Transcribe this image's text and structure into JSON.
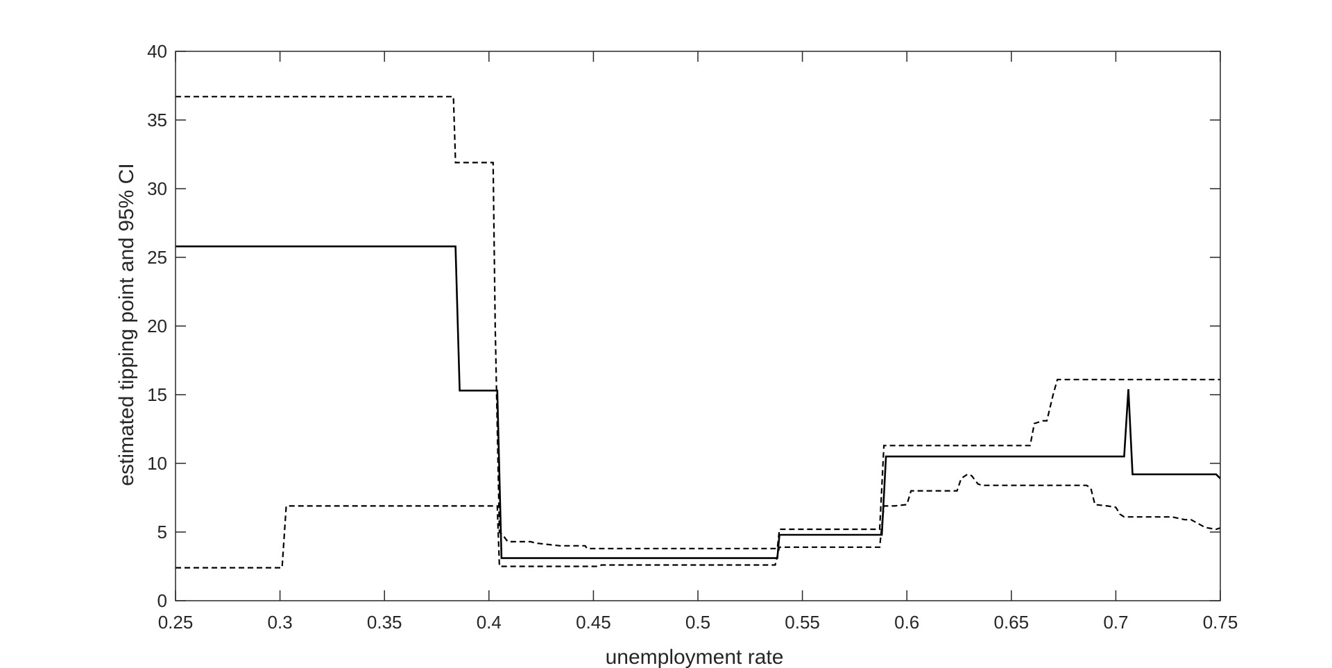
{
  "chart_data": {
    "type": "line",
    "title": "",
    "xlabel": "unemployment rate",
    "ylabel": "estimated tipping point and 95% CI",
    "xlim": [
      0.25,
      0.75
    ],
    "ylim": [
      0,
      40
    ],
    "xticks": [
      0.25,
      0.3,
      0.35,
      0.4,
      0.45,
      0.5,
      0.55,
      0.6,
      0.65,
      0.7,
      0.75
    ],
    "xtick_labels": [
      "0.25",
      "0.3",
      "0.35",
      "0.4",
      "0.45",
      "0.5",
      "0.55",
      "0.6",
      "0.65",
      "0.7",
      "0.75"
    ],
    "yticks": [
      0,
      5,
      10,
      15,
      20,
      25,
      30,
      35,
      40
    ],
    "ytick_labels": [
      "0",
      "5",
      "10",
      "15",
      "20",
      "25",
      "30",
      "35",
      "40"
    ],
    "grid": false,
    "legend": "none",
    "series": [
      {
        "style": "solid",
        "color": "#000000",
        "x": [
          0.25,
          0.384,
          0.386,
          0.404,
          0.406,
          0.538,
          0.539,
          0.588,
          0.59,
          0.704,
          0.706,
          0.708,
          0.748,
          0.75
        ],
        "y": [
          25.8,
          25.8,
          15.3,
          15.3,
          3.1,
          3.1,
          4.8,
          4.8,
          10.5,
          10.5,
          15.4,
          9.2,
          9.2,
          8.9
        ]
      },
      {
        "style": "dashed",
        "color": "#000000",
        "x": [
          0.25,
          0.383,
          0.384,
          0.385,
          0.402,
          0.403,
          0.405,
          0.407,
          0.409,
          0.42,
          0.422,
          0.434,
          0.435,
          0.446,
          0.447,
          0.538,
          0.539,
          0.587,
          0.589,
          0.659,
          0.661,
          0.665,
          0.667,
          0.67,
          0.672,
          0.75
        ],
        "y": [
          36.7,
          36.7,
          31.9,
          31.9,
          31.9,
          20.0,
          5.0,
          4.7,
          4.3,
          4.3,
          4.2,
          4.0,
          4.0,
          4.0,
          3.8,
          3.8,
          5.2,
          5.2,
          11.3,
          11.3,
          12.9,
          13.1,
          13.1,
          15.0,
          16.1,
          16.1
        ]
      },
      {
        "style": "dashed",
        "color": "#000000",
        "x": [
          0.25,
          0.301,
          0.303,
          0.402,
          0.404,
          0.405,
          0.452,
          0.454,
          0.537,
          0.539,
          0.587,
          0.589,
          0.594,
          0.6,
          0.602,
          0.612,
          0.624,
          0.626,
          0.629,
          0.631,
          0.634,
          0.636,
          0.686,
          0.688,
          0.69,
          0.696,
          0.7,
          0.702,
          0.704,
          0.713,
          0.727,
          0.733,
          0.736,
          0.742,
          0.744,
          0.748,
          0.75
        ],
        "y": [
          2.4,
          2.4,
          6.9,
          6.9,
          6.9,
          2.5,
          2.5,
          2.6,
          2.6,
          3.9,
          3.9,
          6.9,
          6.9,
          7.0,
          8.0,
          8.0,
          8.0,
          8.9,
          9.2,
          9.1,
          8.5,
          8.4,
          8.4,
          8.2,
          7.0,
          6.9,
          6.8,
          6.3,
          6.1,
          6.1,
          6.1,
          5.9,
          5.9,
          5.4,
          5.3,
          5.2,
          5.3
        ]
      }
    ]
  }
}
